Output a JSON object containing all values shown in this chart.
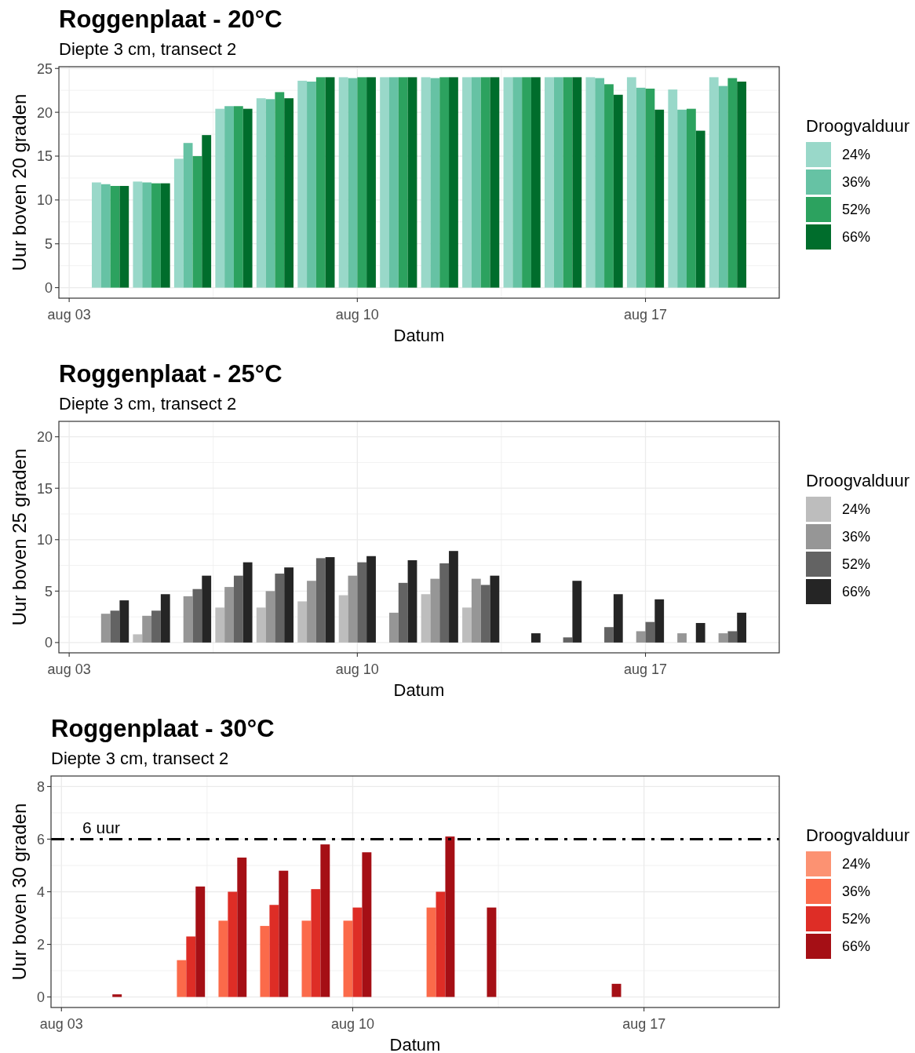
{
  "chart_data": [
    {
      "type": "bar",
      "title": "Roggenplaat - 20°C",
      "subtitle": "Diepte 3 cm, transect 2",
      "xlabel": "Datum",
      "ylabel": "Uur boven 20 graden",
      "legend_title": "Droogvalduur",
      "x": [
        "--08-04",
        "--08-05",
        "--08-06",
        "--08-07",
        "--08-08",
        "--08-09",
        "--08-10",
        "--08-11",
        "--08-12",
        "--08-13",
        "--08-14",
        "--08-15",
        "--08-16",
        "--08-17",
        "--08-18",
        "--08-19"
      ],
      "series": [
        {
          "name": "24%",
          "color": "#99d8c9",
          "values": [
            12.0,
            12.1,
            14.7,
            20.4,
            21.6,
            23.6,
            24.0,
            24.0,
            24.0,
            24.0,
            24.0,
            24.0,
            24.0,
            24.0,
            22.6,
            24.0
          ]
        },
        {
          "name": "36%",
          "color": "#66c2a4",
          "values": [
            11.8,
            12.0,
            16.5,
            20.7,
            21.5,
            23.5,
            23.9,
            24.0,
            23.9,
            24.0,
            24.0,
            24.0,
            23.9,
            22.8,
            20.3,
            23.0
          ]
        },
        {
          "name": "52%",
          "color": "#2ca25f",
          "values": [
            11.6,
            11.9,
            15.0,
            20.7,
            22.3,
            24.0,
            24.0,
            24.0,
            24.0,
            24.0,
            24.0,
            24.0,
            23.2,
            22.7,
            20.4,
            23.9
          ]
        },
        {
          "name": "66%",
          "color": "#006d2c",
          "values": [
            11.6,
            11.9,
            17.4,
            20.4,
            21.6,
            24.0,
            24.0,
            24.0,
            24.0,
            24.0,
            24.0,
            24.0,
            22.0,
            20.3,
            17.9,
            23.5
          ]
        }
      ],
      "xlim": [
        "--08-02T18:00",
        "--08-20T06:00"
      ],
      "xticks": [
        {
          "value": "--08-03",
          "label": "aug 03"
        },
        {
          "value": "--08-06T12:00",
          "label": null
        },
        {
          "value": "--08-10",
          "label": "aug 10"
        },
        {
          "value": "--08-13T12:00",
          "label": null
        },
        {
          "value": "--08-17",
          "label": "aug 17"
        }
      ],
      "ylim": [
        -1.2,
        25.2
      ],
      "yticks": [
        0,
        {
          "value": 2.5,
          "label": null
        },
        5,
        {
          "value": 7.5,
          "label": null
        },
        10,
        {
          "value": 12.5,
          "label": null
        },
        15,
        {
          "value": 17.5,
          "label": null
        },
        20,
        {
          "value": 22.5,
          "label": null
        },
        25
      ],
      "grid": true,
      "legend": "right"
    },
    {
      "type": "bar",
      "title": "Roggenplaat - 25°C",
      "subtitle": "Diepte 3 cm, transect 2",
      "xlabel": "Datum",
      "ylabel": "Uur boven 25 graden",
      "legend_title": "Droogvalduur",
      "x": [
        "--08-04",
        "--08-05",
        "--08-06",
        "--08-07",
        "--08-08",
        "--08-09",
        "--08-10",
        "--08-11",
        "--08-12",
        "--08-13",
        "--08-14",
        "--08-15",
        "--08-16",
        "--08-17",
        "--08-18",
        "--08-19"
      ],
      "series": [
        {
          "name": "24%",
          "color": "#bdbdbd",
          "values": [
            null,
            0.8,
            null,
            3.4,
            3.4,
            4.0,
            4.6,
            null,
            4.7,
            3.4,
            null,
            null,
            null,
            null,
            null,
            null
          ]
        },
        {
          "name": "36%",
          "color": "#969696",
          "values": [
            2.8,
            2.6,
            4.5,
            5.4,
            5.0,
            6.0,
            6.5,
            2.9,
            6.2,
            6.2,
            null,
            null,
            null,
            1.1,
            0.9,
            0.9
          ]
        },
        {
          "name": "52%",
          "color": "#636363",
          "values": [
            3.1,
            3.1,
            5.2,
            6.5,
            6.7,
            8.2,
            7.8,
            5.8,
            7.7,
            5.6,
            null,
            0.5,
            1.5,
            2.0,
            null,
            1.1
          ]
        },
        {
          "name": "66%",
          "color": "#252525",
          "values": [
            4.1,
            4.7,
            6.5,
            7.8,
            7.3,
            8.3,
            8.4,
            8.0,
            8.9,
            6.5,
            0.9,
            6.0,
            4.7,
            4.2,
            1.9,
            2.9
          ]
        }
      ],
      "xlim": [
        "--08-02T18:00",
        "--08-20T06:00"
      ],
      "xticks": [
        {
          "value": "--08-03",
          "label": "aug 03"
        },
        {
          "value": "--08-06T12:00",
          "label": null
        },
        {
          "value": "--08-10",
          "label": "aug 10"
        },
        {
          "value": "--08-13T12:00",
          "label": null
        },
        {
          "value": "--08-17",
          "label": "aug 17"
        }
      ],
      "ylim": [
        -1.0,
        21.5
      ],
      "yticks": [
        0,
        {
          "value": 2.5,
          "label": null
        },
        5,
        {
          "value": 7.5,
          "label": null
        },
        10,
        {
          "value": 12.5,
          "label": null
        },
        15,
        {
          "value": 17.5,
          "label": null
        },
        20
      ],
      "grid": true,
      "legend": "right"
    },
    {
      "type": "bar",
      "title": "Roggenplaat - 30°C",
      "subtitle": "Diepte 3 cm, transect 2",
      "xlabel": "Datum",
      "ylabel": "Uur boven 30 graden",
      "legend_title": "Droogvalduur",
      "x": [
        "--08-04",
        "--08-06",
        "--08-07",
        "--08-08",
        "--08-09",
        "--08-10",
        "--08-12",
        "--08-13",
        "--08-16"
      ],
      "series": [
        {
          "name": "24%",
          "color": "#fc9272",
          "values": [
            null,
            null,
            null,
            null,
            null,
            null,
            null,
            null,
            null
          ]
        },
        {
          "name": "36%",
          "color": "#fb6a4a",
          "values": [
            null,
            1.4,
            2.9,
            2.7,
            2.9,
            2.9,
            3.4,
            null,
            null
          ]
        },
        {
          "name": "52%",
          "color": "#de2d26",
          "values": [
            null,
            2.3,
            4.0,
            3.5,
            4.1,
            3.4,
            4.0,
            null,
            null
          ]
        },
        {
          "name": "66%",
          "color": "#a50f15",
          "values": [
            0.1,
            4.2,
            5.3,
            4.8,
            5.8,
            5.5,
            6.1,
            3.4,
            0.5
          ]
        }
      ],
      "xlim": [
        "--08-02T18:00",
        "--08-20T06:00"
      ],
      "xticks": [
        {
          "value": "--08-03",
          "label": "aug 03"
        },
        {
          "value": "--08-06T12:00",
          "label": null
        },
        {
          "value": "--08-10",
          "label": "aug 10"
        },
        {
          "value": "--08-13T12:00",
          "label": null
        },
        {
          "value": "--08-17",
          "label": "aug 17"
        }
      ],
      "ylim": [
        -0.4,
        8.4
      ],
      "yticks": [
        0,
        {
          "value": 1,
          "label": null
        },
        2,
        {
          "value": 3,
          "label": null
        },
        4,
        {
          "value": 5,
          "label": null
        },
        6,
        {
          "value": 7,
          "label": null
        },
        8
      ],
      "ref_lines": [
        {
          "axis": "y",
          "value": 6,
          "label": "6 uur",
          "color": "#000000",
          "line_style": "dashdot"
        }
      ],
      "grid": true,
      "legend": "right"
    }
  ]
}
